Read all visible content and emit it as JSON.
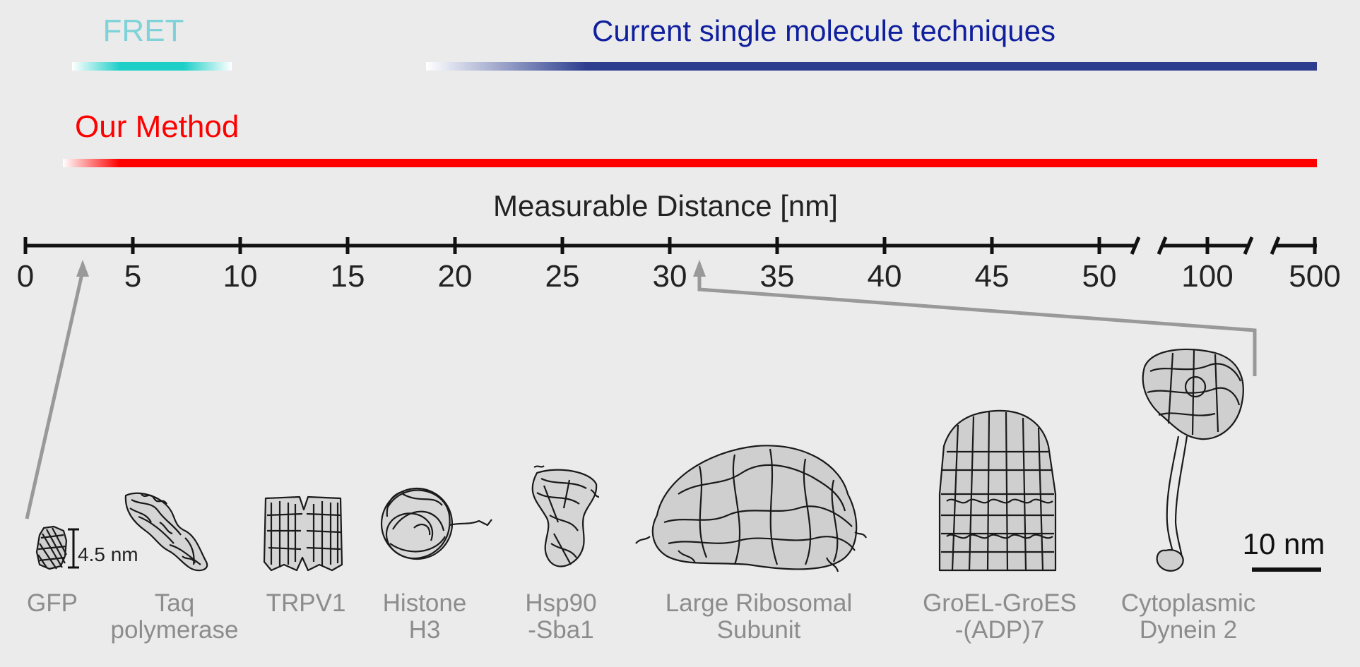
{
  "ranges": {
    "fret": {
      "label": "FRET",
      "color": "#7fd3d8",
      "bar_color": "#1ecfc8"
    },
    "current": {
      "label": "Current single molecule techniques",
      "color": "#0f1f9e",
      "bar_color": "#2d3e8f"
    },
    "ours": {
      "label": "Our Method",
      "color": "#ff0000",
      "bar_color": "#ff0000"
    }
  },
  "axis": {
    "title": "Measurable Distance [nm]",
    "ticks": [
      "0",
      "5",
      "10",
      "15",
      "20",
      "25",
      "30",
      "35",
      "40",
      "45",
      "50",
      "100",
      "500"
    ]
  },
  "molecules": [
    {
      "name_line1": "GFP",
      "name_line2": ""
    },
    {
      "name_line1": "Taq",
      "name_line2": "polymerase"
    },
    {
      "name_line1": "TRPV1",
      "name_line2": ""
    },
    {
      "name_line1": "Histone",
      "name_line2": "H3"
    },
    {
      "name_line1": "Hsp90",
      "name_line2": "-Sba1"
    },
    {
      "name_line1": "Large Ribosomal",
      "name_line2": "Subunit"
    },
    {
      "name_line1": "GroEL-GroES",
      "name_line2": "-(ADP)7"
    },
    {
      "name_line1": "Cytoplasmic",
      "name_line2": "Dynein 2"
    }
  ],
  "annotations": {
    "gfp_size": "4.5 nm",
    "scale_bar": "10 nm"
  },
  "colors": {
    "background": "#ebebeb",
    "arrow": "#999999",
    "label_gray": "#8c8c8c",
    "text_dark": "#222222"
  }
}
